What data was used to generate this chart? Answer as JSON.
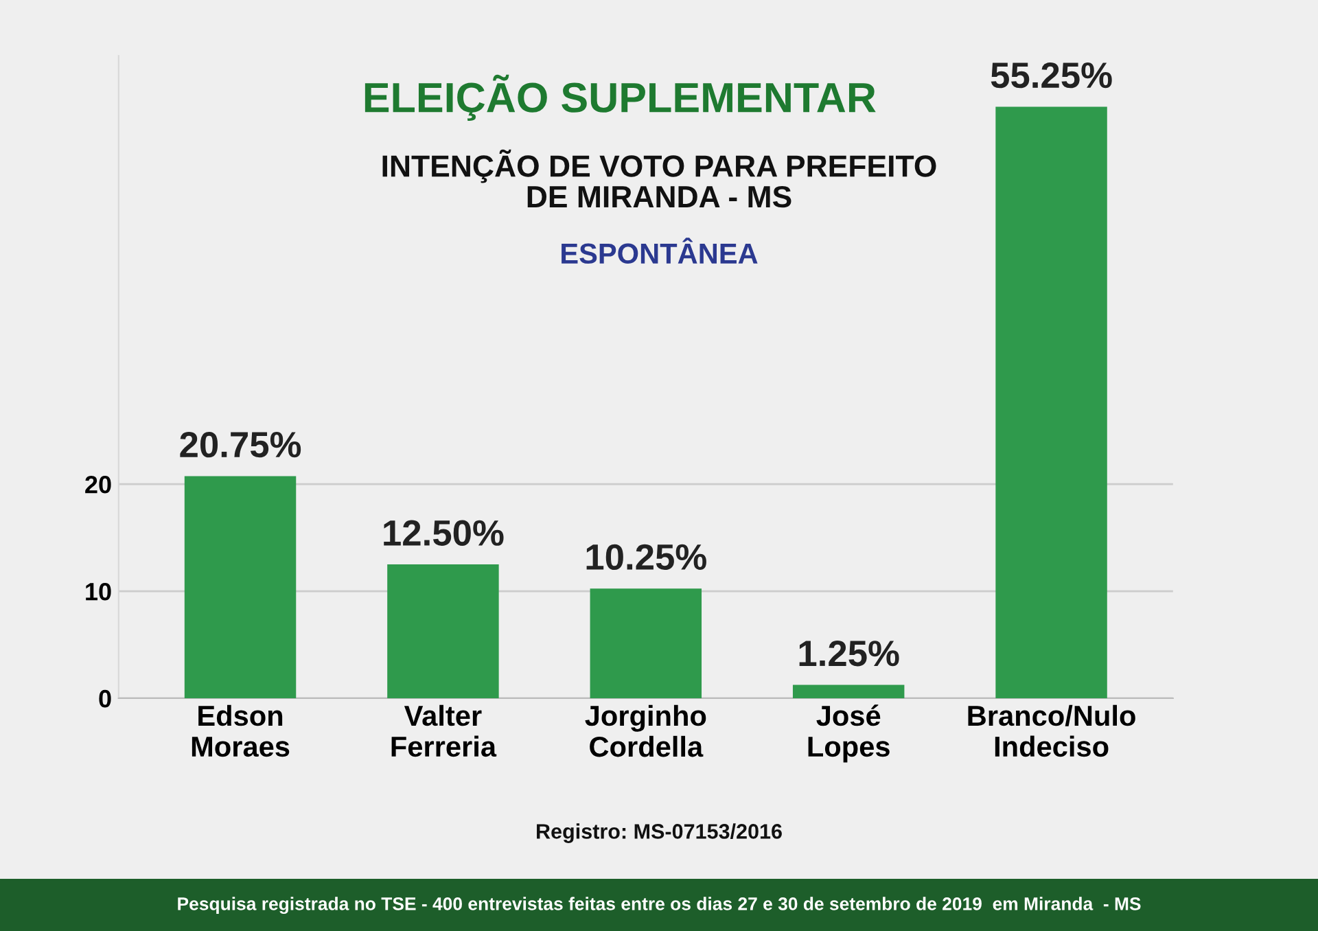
{
  "chart_data": {
    "type": "bar",
    "title": "ELEIÇÃO SUPLEMENTAR",
    "subtitle": "INTENÇÃO DE VOTO PARA PREFEITO\nDE MIRANDA - MS",
    "categories": [
      "Edson\nMoraes",
      "Valter\nFerreria",
      "Jorginho\nCordella",
      "José\nLopes",
      "Branco/Nulo\nIndeciso"
    ],
    "values": [
      20.75,
      12.5,
      10.25,
      1.25,
      55.25
    ],
    "value_labels": [
      "20.75%",
      "12.50%",
      "10.25%",
      "1.25%",
      "55.25%"
    ],
    "color": "#2f9a4c",
    "ylim": [
      0,
      60
    ],
    "yticks": [
      0,
      10,
      20
    ],
    "grid": "y",
    "legend": false,
    "annotations": [
      "ESPONTÂNEA",
      "Registro: MS-07153/2016",
      "Pesquisa registrada no TSE - 400 entrevistas feitas entre os dias 27 e 30 de setembro de 2019  em Miranda  - MS"
    ]
  }
}
